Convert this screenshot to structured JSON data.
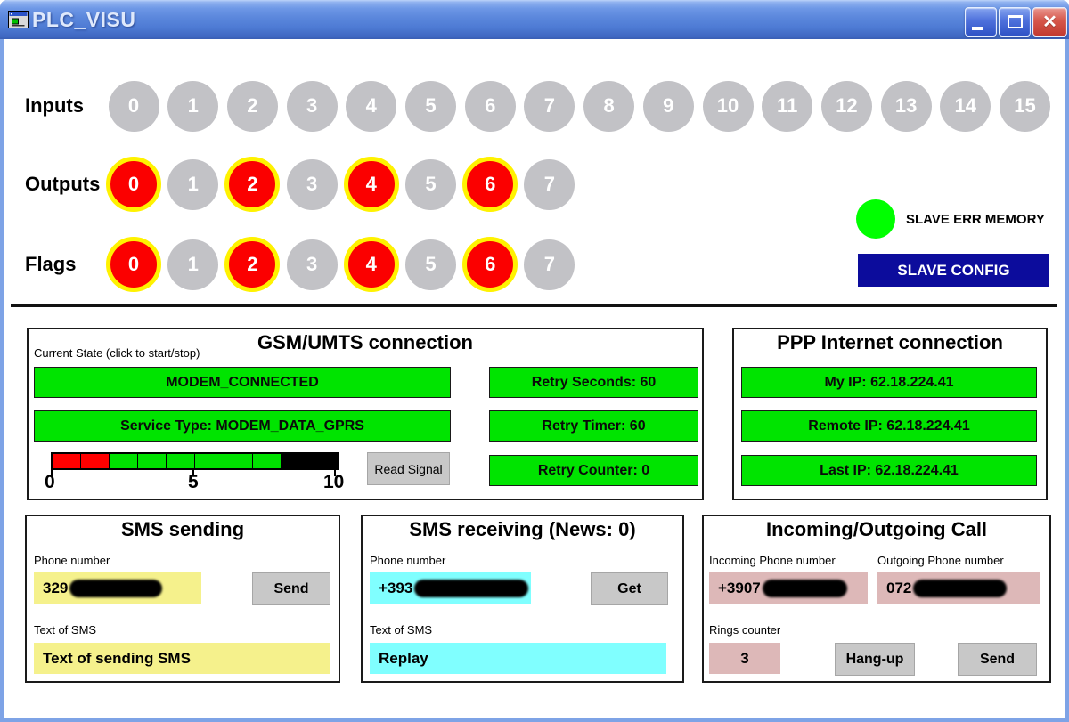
{
  "window": {
    "title": "PLC_VISU"
  },
  "io": {
    "rows": [
      {
        "label": "Inputs",
        "count": 16,
        "on": []
      },
      {
        "label": "Outputs",
        "count": 8,
        "on": [
          0,
          2,
          4,
          6
        ]
      },
      {
        "label": "Flags",
        "count": 8,
        "on": [
          0,
          2,
          4,
          6
        ]
      }
    ]
  },
  "slave": {
    "err_memory_label": "SLAVE ERR MEMORY",
    "config_button": "SLAVE CONFIG"
  },
  "gsm": {
    "title": "GSM/UMTS connection",
    "current_state_label": "Current State (click to start/stop)",
    "state": "MODEM_CONNECTED",
    "service_type": "Service Type: MODEM_DATA_GPRS",
    "read_signal_button": "Read Signal",
    "retry_seconds": "Retry Seconds: 60",
    "retry_timer": "Retry Timer: 60",
    "retry_counter": "Retry Counter: 0",
    "meter": {
      "min_label": "0",
      "mid_label": "5",
      "max_label": "10",
      "cells": [
        "#ff0000",
        "#ff0000",
        "#00e000",
        "#00e000",
        "#00e000",
        "#00e000",
        "#00e000",
        "#00e000",
        "#000000",
        "#000000"
      ]
    }
  },
  "ppp": {
    "title": "PPP Internet connection",
    "my_ip": "My IP: 62.18.224.41",
    "remote_ip": "Remote IP: 62.18.224.41",
    "last_ip": "Last IP: 62.18.224.41"
  },
  "sms_sending": {
    "title": "SMS sending",
    "phone_label": "Phone number",
    "phone_value": "329",
    "send_button": "Send",
    "text_label": "Text of SMS",
    "text_value": "Text of sending SMS"
  },
  "sms_receiving": {
    "title": "SMS receiving (News: 0)",
    "phone_label": "Phone number",
    "phone_value": "+393",
    "get_button": "Get",
    "text_label": "Text of SMS",
    "text_value": "Replay"
  },
  "call": {
    "title": "Incoming/Outgoing Call",
    "incoming_label": "Incoming Phone number",
    "outgoing_label": "Outgoing Phone number",
    "incoming_value": "+3907",
    "outgoing_value": "072",
    "rings_label": "Rings counter",
    "rings_value": "3",
    "hangup_button": "Hang-up",
    "send_button": "Send"
  },
  "colors": {
    "green_box": "#00e400",
    "lamp_green": "#00ff00",
    "circle_on_red": "#fb0000",
    "circle_ring_yellow": "#fff200",
    "circle_off_gray": "#c2c2c6",
    "navy_button": "#0c0c9c",
    "yellow_field": "#f5f18c",
    "cyan_field": "#80ffff",
    "pink_field": "#ddb8b8",
    "gray_button": "#c8c8c8"
  }
}
